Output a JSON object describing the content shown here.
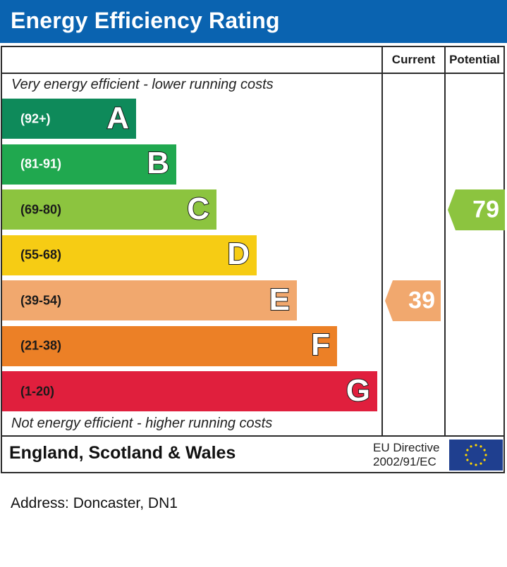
{
  "header": {
    "title": "Energy Efficiency Rating"
  },
  "columns": {
    "current": "Current",
    "potential": "Potential"
  },
  "captions": {
    "top": "Very energy efficient - lower running costs",
    "bottom": "Not energy efficient - higher running costs"
  },
  "chart_data": {
    "type": "bar",
    "title": "Energy Efficiency Rating",
    "categories": [
      "A",
      "B",
      "C",
      "D",
      "E",
      "F",
      "G"
    ],
    "ranges": [
      "(92+)",
      "(81-91)",
      "(69-80)",
      "(55-68)",
      "(39-54)",
      "(21-38)",
      "(1-20)"
    ],
    "band_colors": [
      "#0e8a5a",
      "#20a84f",
      "#8cc43f",
      "#f6cc14",
      "#f1a86e",
      "#ec8026",
      "#e01f3d"
    ],
    "current": {
      "value": 39,
      "band": "E",
      "color": "#f1a86e"
    },
    "potential": {
      "value": 79,
      "band": "C",
      "color": "#8cc43f"
    }
  },
  "footer": {
    "region": "England, Scotland & Wales",
    "eu_line1": "EU Directive",
    "eu_line2": "2002/91/EC",
    "flag_icon": "eu-flag-icon"
  },
  "address": "Address: Doncaster, DN1"
}
